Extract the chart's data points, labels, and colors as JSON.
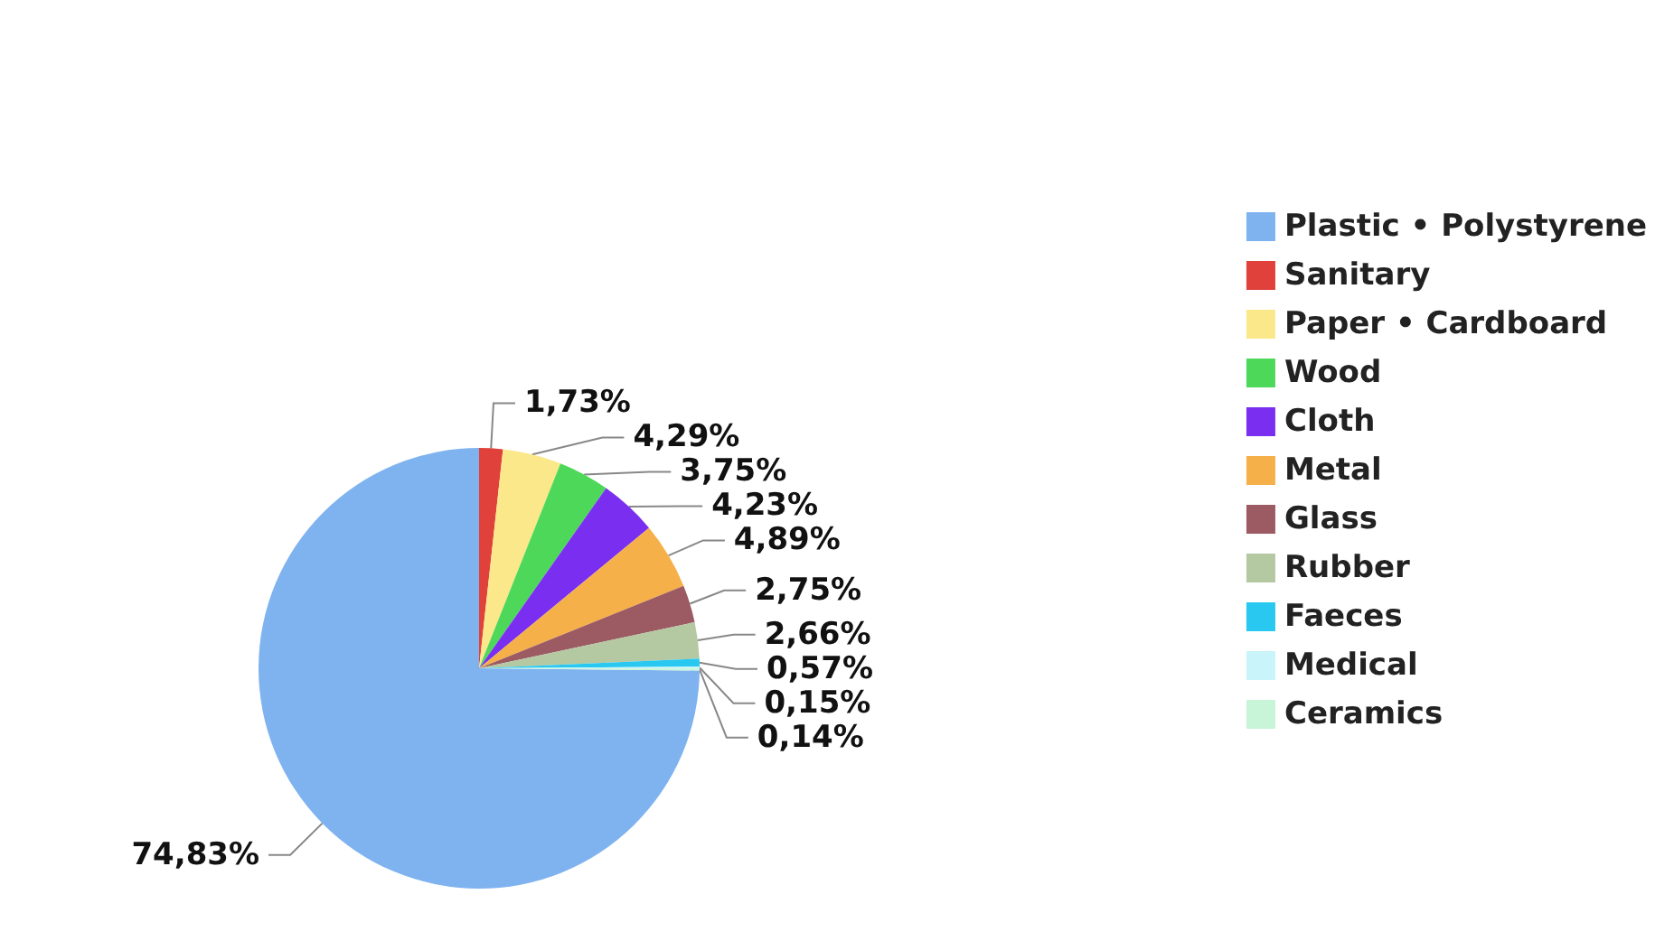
{
  "chart_data": {
    "type": "pie",
    "categories": [
      "Plastic • Polystyrene",
      "Sanitary",
      "Paper • Cardboard",
      "Wood",
      "Cloth",
      "Metal",
      "Glass",
      "Rubber",
      "Faeces",
      "Medical",
      "Ceramics"
    ],
    "values": [
      74.83,
      1.73,
      4.29,
      3.75,
      4.23,
      4.89,
      2.75,
      2.66,
      0.57,
      0.15,
      0.14
    ],
    "value_labels": [
      "74,83%",
      "1,73%",
      "4,29%",
      "3,75%",
      "4,23%",
      "4,89%",
      "2,75%",
      "2,66%",
      "0,57%",
      "0,15%",
      "0,14%"
    ],
    "colors": [
      "#7fb3f0",
      "#e0413a",
      "#fbe88a",
      "#4ed85a",
      "#7a2ff0",
      "#f5b04a",
      "#9c5a63",
      "#b4c9a2",
      "#28c8f0",
      "#c8f4fa",
      "#c8f4d8"
    ],
    "legend": "right"
  }
}
